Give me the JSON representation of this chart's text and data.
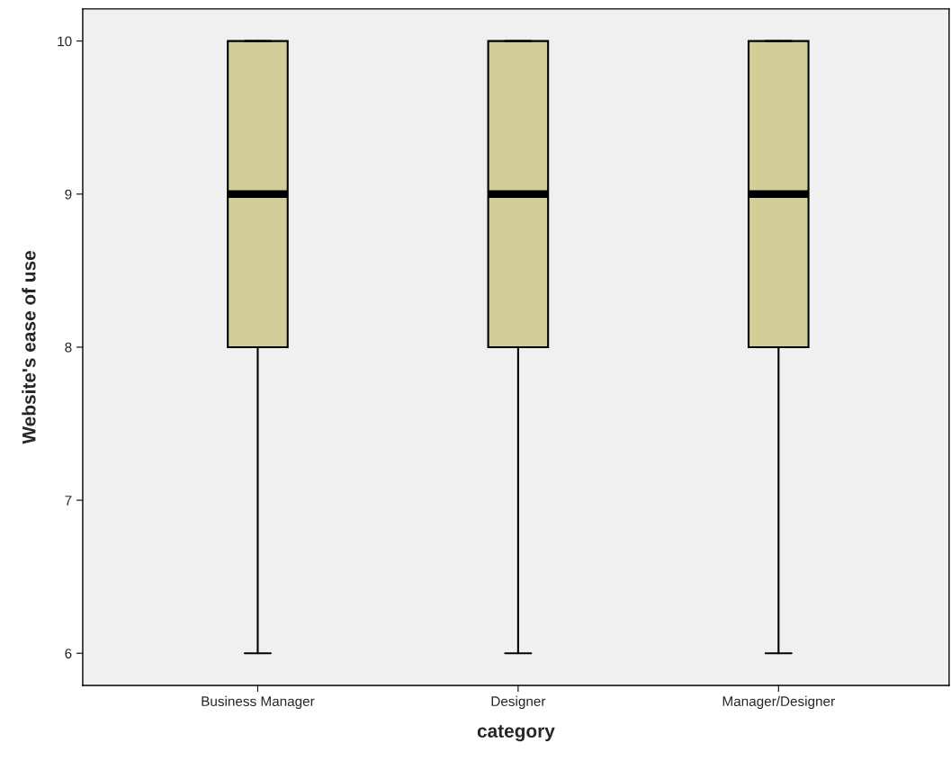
{
  "chart_data": {
    "type": "box",
    "xlabel": "category",
    "ylabel": "Website's ease of use",
    "categories": [
      "Business Manager",
      "Designer",
      "Manager/Designer"
    ],
    "series": [
      {
        "color": "#d3ce97",
        "boxes": [
          {
            "low": 6,
            "q1": 8,
            "median": 9,
            "q3": 10,
            "high": 10
          },
          {
            "low": 6,
            "q1": 8,
            "median": 9,
            "q3": 10,
            "high": 10
          },
          {
            "low": 6,
            "q1": 8,
            "median": 9,
            "q3": 10,
            "high": 10
          }
        ]
      }
    ],
    "ylim": [
      5.79,
      10.21
    ],
    "yticks": [
      6,
      7,
      8,
      9,
      10
    ]
  }
}
